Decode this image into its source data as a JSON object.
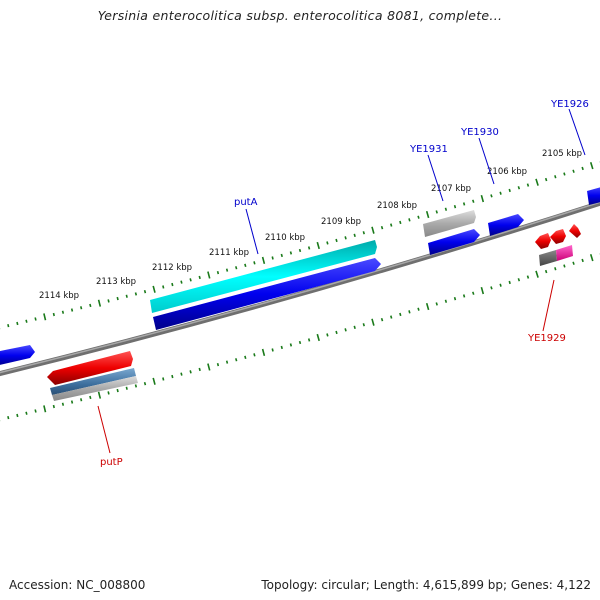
{
  "title": "Yersinia enterocolitica subsp. enterocolitica 8081, complete...",
  "footer": {
    "accession": "Accession: NC_008800",
    "summary": "Topology: circular; Length: 4,615,899 bp; Genes: 4,122"
  },
  "scale_ticks": [
    "2105 kbp",
    "2106 kbp",
    "2107 kbp",
    "2108 kbp",
    "2109 kbp",
    "2110 kbp",
    "2111 kbp",
    "2112 kbp",
    "2113 kbp",
    "2114 kbp"
  ],
  "gene_labels": {
    "putA": "putA",
    "putP": "putP",
    "YE1926": "YE1926",
    "YE1929": "YE1929",
    "YE1930": "YE1930",
    "YE1931": "YE1931"
  },
  "colors": {
    "forward_label": "#0000cc",
    "reverse_label": "#cc0000",
    "backbone": "#808080",
    "tick": "#1a7a1a",
    "forward_cds": "#0000ee",
    "reverse_cds": "#ee0000",
    "putA_feature": "#00e6e6",
    "putP_feature": "#4a7fb0"
  }
}
